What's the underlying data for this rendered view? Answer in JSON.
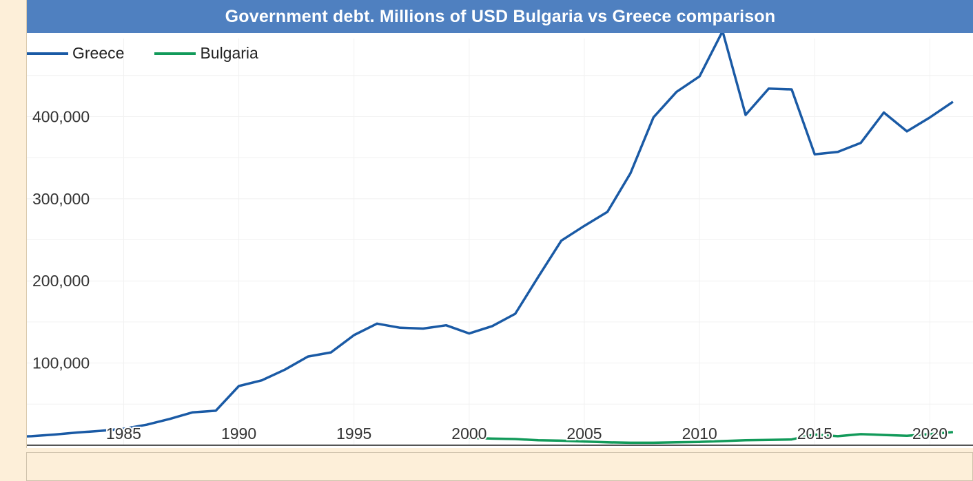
{
  "chart_data": {
    "type": "line",
    "title": "Government debt. Millions of USD Bulgaria vs Greece comparison",
    "xlabel": "",
    "ylabel": "",
    "xlim": [
      1980.8,
      2021.9
    ],
    "ylim": [
      0,
      495000
    ],
    "x_ticks": [
      1985,
      1990,
      1995,
      2000,
      2005,
      2010,
      2015,
      2020
    ],
    "y_ticks": [
      100000,
      200000,
      300000,
      400000
    ],
    "y_tick_labels": [
      "100,000",
      "200,000",
      "300,000",
      "400,000"
    ],
    "grid": true,
    "legend": "top-left",
    "series": [
      {
        "name": "Greece",
        "color": "#1a5aa5",
        "x": [
          1980,
          1981,
          1982,
          1983,
          1984,
          1985,
          1986,
          1987,
          1988,
          1989,
          1990,
          1991,
          1992,
          1993,
          1994,
          1995,
          1996,
          1997,
          1998,
          1999,
          2000,
          2001,
          2002,
          2003,
          2004,
          2005,
          2006,
          2007,
          2008,
          2009,
          2010,
          2011,
          2012,
          2013,
          2014,
          2015,
          2016,
          2017,
          2018,
          2019,
          2020,
          2021
        ],
        "values": [
          10000,
          11000,
          13000,
          15500,
          17500,
          20000,
          25000,
          32000,
          40000,
          42000,
          72000,
          79000,
          92000,
          108000,
          113000,
          134000,
          148000,
          143000,
          142000,
          146000,
          136000,
          145000,
          160000,
          205000,
          249000,
          267000,
          284000,
          331000,
          399000,
          430000,
          449000,
          504000,
          402000,
          434000,
          433000,
          354000,
          357000,
          368000,
          405000,
          382000,
          399000,
          418000
        ]
      },
      {
        "name": "Bulgaria",
        "color": "#129a5a",
        "x": [
          2000,
          2001,
          2002,
          2003,
          2004,
          2005,
          2006,
          2007,
          2008,
          2009,
          2010,
          2011,
          2012,
          2013,
          2014,
          2015,
          2016,
          2017,
          2018,
          2019,
          2020,
          2021
        ],
        "values": [
          9000,
          8000,
          7500,
          6000,
          5500,
          4500,
          3500,
          3000,
          3000,
          3500,
          4000,
          5000,
          6000,
          6500,
          7000,
          13000,
          11000,
          13500,
          12500,
          11500,
          13500,
          16000
        ]
      }
    ]
  }
}
